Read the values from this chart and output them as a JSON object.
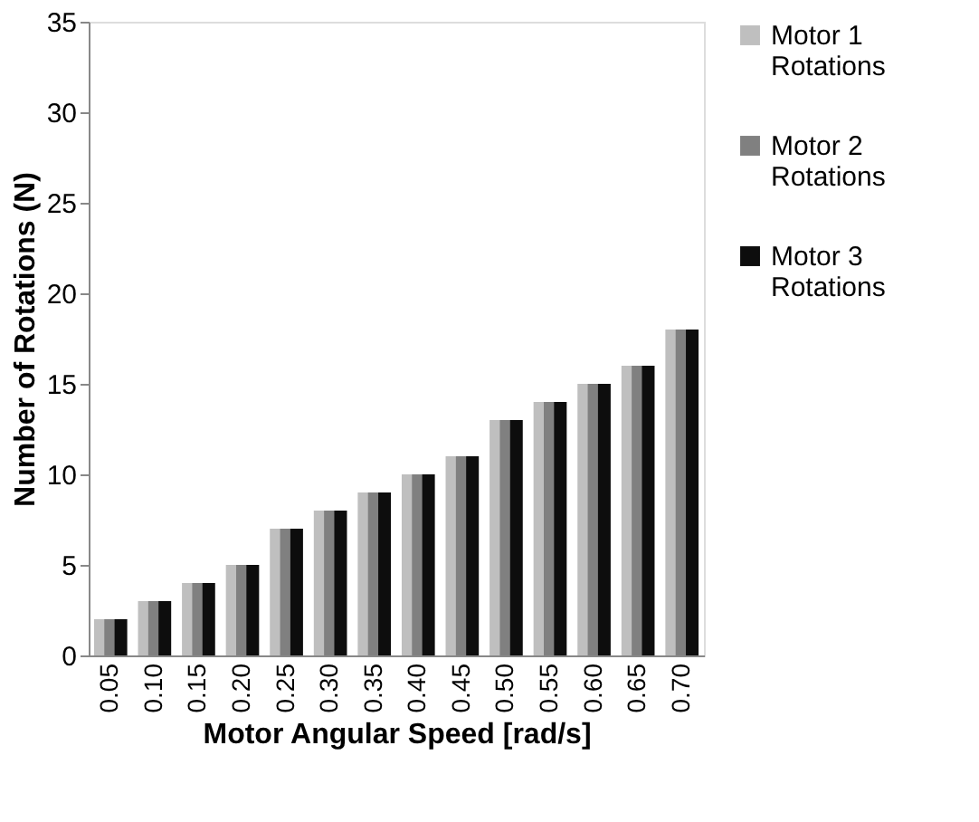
{
  "chart_data": {
    "type": "bar",
    "xlabel": "Motor Angular Speed [rad/s]",
    "ylabel": "Number of Rotations (N)",
    "categories": [
      "0.05",
      "0.10",
      "0.15",
      "0.20",
      "0.25",
      "0.30",
      "0.35",
      "0.40",
      "0.45",
      "0.50",
      "0.55",
      "0.60",
      "0.65",
      "0.70"
    ],
    "series": [
      {
        "name": "Motor 1 Rotations",
        "color": "#bfbfbf",
        "values": [
          2,
          3,
          4,
          5,
          7,
          8,
          9,
          10,
          11,
          13,
          14,
          15,
          16,
          18
        ]
      },
      {
        "name": "Motor 2 Rotations",
        "color": "#808080",
        "values": [
          2,
          3,
          4,
          5,
          7,
          8,
          9,
          10,
          11,
          13,
          14,
          15,
          16,
          18
        ]
      },
      {
        "name": "Motor 3 Rotations",
        "color": "#0d0d0d",
        "values": [
          2,
          3,
          4,
          5,
          7,
          8,
          9,
          10,
          11,
          13,
          14,
          15,
          16,
          18
        ]
      }
    ],
    "ylim": [
      0,
      35
    ],
    "yticks": [
      0,
      5,
      10,
      15,
      20,
      25,
      30,
      35
    ],
    "grid": false,
    "legend": "right"
  }
}
